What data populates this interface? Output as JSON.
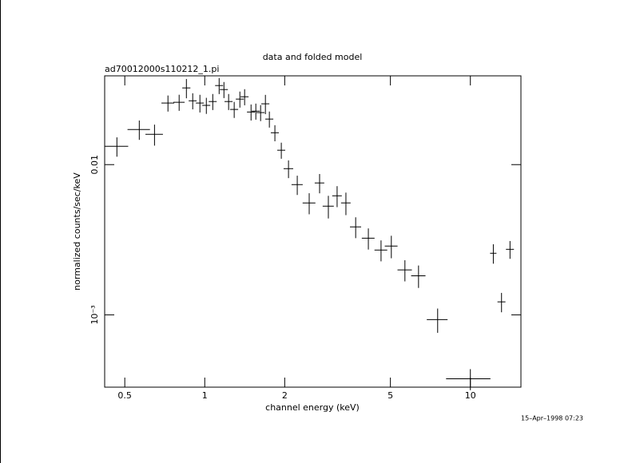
{
  "chart_data": {
    "type": "errorbar",
    "title": "data and folded model",
    "subtitle": "ad70012000s110212_1.pi",
    "x_label": "channel energy (keV)",
    "y_label": "normalized counts/sec/keV",
    "footnote": "15–Apr–1998 07:23",
    "x_scale": "log",
    "y_scale": "log",
    "color": "#000000",
    "xlim": [
      0.42,
      15.5
    ],
    "ylim": [
      0.00033,
      0.039
    ],
    "xticks": [
      0.5,
      1,
      2,
      5,
      10
    ],
    "yticks": [
      {
        "value": 0.001,
        "label": "10⁻³"
      },
      0.01
    ],
    "x": [
      0.467,
      0.567,
      0.647,
      0.727,
      0.801,
      0.853,
      0.901,
      0.959,
      1.014,
      1.072,
      1.133,
      1.181,
      1.23,
      1.291,
      1.356,
      1.413,
      1.494,
      1.557,
      1.623,
      1.692,
      1.751,
      1.837,
      1.942,
      2.067,
      2.23,
      2.473,
      2.706,
      2.92,
      3.15,
      3.4,
      3.7,
      4.13,
      4.61,
      5.04,
      5.67,
      6.38,
      7.53,
      10.0,
      12.2,
      13.1,
      14.1
    ],
    "xerr": [
      0.048,
      0.055,
      0.049,
      0.04,
      0.039,
      0.03,
      0.031,
      0.033,
      0.035,
      0.037,
      0.039,
      0.041,
      0.043,
      0.045,
      0.047,
      0.049,
      0.052,
      0.054,
      0.056,
      0.059,
      0.061,
      0.064,
      0.067,
      0.086,
      0.108,
      0.137,
      0.112,
      0.141,
      0.131,
      0.141,
      0.179,
      0.228,
      0.255,
      0.279,
      0.353,
      0.397,
      0.677,
      1.9,
      0.337,
      0.453,
      0.488
    ],
    "values": [
      0.01324,
      0.01714,
      0.01592,
      0.0257,
      0.026,
      0.0324,
      0.0266,
      0.0257,
      0.0248,
      0.0263,
      0.0336,
      0.0316,
      0.0263,
      0.0233,
      0.0273,
      0.0283,
      0.0224,
      0.0227,
      0.0222,
      0.0254,
      0.0201,
      0.0163,
      0.01247,
      0.0094,
      0.00736,
      0.00556,
      0.00755,
      0.00529,
      0.0062,
      0.00556,
      0.00385,
      0.00324,
      0.0027,
      0.00287,
      0.00199,
      0.00182,
      0.00093,
      0.000375,
      0.00257,
      0.00122,
      0.00273
    ],
    "yerr": [
      0.00195,
      0.00252,
      0.00254,
      0.00315,
      0.00319,
      0.00476,
      0.00326,
      0.00346,
      0.00304,
      0.00322,
      0.00412,
      0.00387,
      0.00322,
      0.00285,
      0.00334,
      0.00347,
      0.00274,
      0.00278,
      0.00272,
      0.00373,
      0.00246,
      0.002,
      0.00153,
      0.00127,
      0.00108,
      0.00089,
      0.00111,
      0.00091,
      0.00099,
      0.00095,
      0.00061,
      0.00052,
      0.00043,
      0.00049,
      0.00032,
      0.00031,
      0.000171,
      6e-05,
      0.00038,
      0.00018,
      0.00037
    ]
  }
}
